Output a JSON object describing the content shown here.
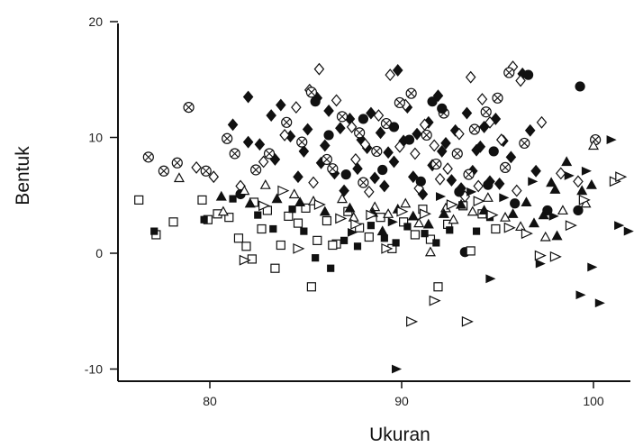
{
  "chart_data": {
    "type": "scatter",
    "title": "",
    "xlabel": "Ukuran",
    "ylabel": "Bentuk",
    "xlim": [
      76,
      101.5
    ],
    "ylim": [
      -10,
      20
    ],
    "x_ticks": [
      80,
      90,
      100
    ],
    "y_ticks": [
      -10,
      0,
      10,
      20
    ],
    "grid": false,
    "legend": "none",
    "colors": {
      "ink": "#111111",
      "background": "#ffffff"
    },
    "marker_symbols": [
      "filled-diamond",
      "open-diamond",
      "circle-cross",
      "filled-circle",
      "open-square",
      "filled-square",
      "open-triangle",
      "filled-triangle",
      "open-right-triangle",
      "filled-right-triangle"
    ],
    "series": [
      {
        "marker": "filled-diamond",
        "points": [
          [
            82.0,
            13.5
          ],
          [
            81.2,
            11.1
          ],
          [
            82.0,
            9.6
          ],
          [
            83.2,
            11.9
          ],
          [
            83.7,
            12.8
          ],
          [
            84.2,
            10.1
          ],
          [
            85.6,
            13.4
          ],
          [
            86.2,
            12.3
          ],
          [
            86.8,
            10.8
          ],
          [
            87.3,
            11.6
          ],
          [
            87.9,
            9.8
          ],
          [
            88.4,
            12.1
          ],
          [
            88.9,
            10.4
          ],
          [
            89.3,
            8.7
          ],
          [
            89.8,
            15.8
          ],
          [
            90.3,
            12.6
          ],
          [
            90.8,
            10.3
          ],
          [
            91.4,
            11.3
          ],
          [
            91.9,
            13.6
          ],
          [
            92.3,
            9.5
          ],
          [
            92.8,
            10.6
          ],
          [
            93.4,
            12.1
          ],
          [
            93.9,
            8.9
          ],
          [
            94.3,
            10.9
          ],
          [
            94.9,
            11.6
          ],
          [
            95.3,
            9.7
          ],
          [
            96.3,
            15.5
          ],
          [
            96.7,
            10.6
          ],
          [
            84.9,
            8.8
          ],
          [
            85.8,
            7.8
          ],
          [
            86.5,
            6.9
          ],
          [
            87.7,
            7.3
          ],
          [
            88.6,
            6.5
          ],
          [
            89.6,
            7.9
          ],
          [
            90.6,
            6.6
          ],
          [
            91.6,
            7.6
          ],
          [
            92.6,
            6.3
          ],
          [
            93.7,
            7.1
          ],
          [
            94.6,
            6.2
          ],
          [
            86.0,
            9.3
          ],
          [
            88.2,
            9.1
          ],
          [
            90.1,
            9.7
          ],
          [
            92.1,
            8.8
          ],
          [
            94.1,
            9.2
          ],
          [
            95.7,
            8.3
          ],
          [
            83.4,
            8.1
          ],
          [
            84.6,
            6.6
          ],
          [
            87.0,
            5.4
          ],
          [
            89.1,
            5.8
          ],
          [
            91.1,
            5.1
          ],
          [
            93.1,
            5.6
          ],
          [
            95.1,
            6.0
          ],
          [
            97.0,
            7.1
          ],
          [
            82.6,
            9.4
          ],
          [
            85.1,
            10.7
          ]
        ]
      },
      {
        "marker": "open-diamond",
        "points": [
          [
            79.3,
            7.4
          ],
          [
            80.2,
            6.6
          ],
          [
            81.6,
            5.8
          ],
          [
            82.8,
            7.9
          ],
          [
            83.9,
            10.2
          ],
          [
            84.5,
            12.6
          ],
          [
            85.2,
            14.1
          ],
          [
            85.7,
            15.9
          ],
          [
            86.6,
            13.2
          ],
          [
            87.4,
            10.9
          ],
          [
            88.1,
            9.4
          ],
          [
            88.8,
            11.9
          ],
          [
            89.4,
            15.4
          ],
          [
            90.2,
            12.8
          ],
          [
            90.7,
            8.6
          ],
          [
            91.2,
            11.1
          ],
          [
            91.7,
            9.3
          ],
          [
            92.4,
            7.3
          ],
          [
            93.0,
            10.3
          ],
          [
            93.6,
            15.2
          ],
          [
            94.2,
            13.3
          ],
          [
            94.6,
            11.3
          ],
          [
            95.2,
            9.8
          ],
          [
            95.8,
            16.1
          ],
          [
            96.2,
            14.9
          ],
          [
            97.3,
            11.3
          ],
          [
            98.3,
            6.9
          ],
          [
            99.2,
            6.2
          ],
          [
            87.6,
            8.1
          ],
          [
            89.9,
            9.2
          ],
          [
            92.0,
            6.4
          ],
          [
            94.0,
            5.8
          ],
          [
            85.4,
            6.1
          ],
          [
            88.3,
            5.3
          ],
          [
            90.9,
            5.6
          ],
          [
            93.3,
            4.9
          ],
          [
            96.0,
            5.4
          ]
        ]
      },
      {
        "marker": "circle-cross",
        "points": [
          [
            76.8,
            8.3
          ],
          [
            77.6,
            7.1
          ],
          [
            78.3,
            7.8
          ],
          [
            78.9,
            12.6
          ],
          [
            79.8,
            7.1
          ],
          [
            80.9,
            9.9
          ],
          [
            81.3,
            8.6
          ],
          [
            82.4,
            7.2
          ],
          [
            83.1,
            8.6
          ],
          [
            84.0,
            11.3
          ],
          [
            84.8,
            9.6
          ],
          [
            85.3,
            13.9
          ],
          [
            86.1,
            8.1
          ],
          [
            86.9,
            11.8
          ],
          [
            87.8,
            10.4
          ],
          [
            88.7,
            8.8
          ],
          [
            89.2,
            11.2
          ],
          [
            89.9,
            13.0
          ],
          [
            90.5,
            13.8
          ],
          [
            91.3,
            10.2
          ],
          [
            92.2,
            12.1
          ],
          [
            92.9,
            8.6
          ],
          [
            93.8,
            10.7
          ],
          [
            94.4,
            12.2
          ],
          [
            95.0,
            13.4
          ],
          [
            95.6,
            15.6
          ],
          [
            96.4,
            9.5
          ],
          [
            100.1,
            9.8
          ],
          [
            86.4,
            7.3
          ],
          [
            88.0,
            6.1
          ],
          [
            91.8,
            7.7
          ],
          [
            93.5,
            6.8
          ],
          [
            95.4,
            7.4
          ]
        ]
      },
      {
        "marker": "filled-circle",
        "points": [
          [
            81.6,
            5.1
          ],
          [
            85.5,
            13.1
          ],
          [
            86.2,
            10.2
          ],
          [
            88.0,
            11.6
          ],
          [
            89.6,
            10.9
          ],
          [
            90.4,
            9.8
          ],
          [
            91.6,
            13.1
          ],
          [
            92.1,
            12.5
          ],
          [
            93.3,
            0.1
          ],
          [
            94.8,
            8.8
          ],
          [
            95.9,
            4.3
          ],
          [
            96.6,
            15.4
          ],
          [
            97.6,
            3.7
          ],
          [
            99.2,
            3.7
          ],
          [
            99.3,
            14.4
          ],
          [
            87.1,
            6.8
          ],
          [
            89.0,
            7.2
          ],
          [
            91.0,
            6.2
          ],
          [
            93.0,
            5.3
          ],
          [
            94.5,
            5.9
          ]
        ]
      },
      {
        "marker": "open-square",
        "points": [
          [
            76.3,
            4.6
          ],
          [
            77.2,
            1.6
          ],
          [
            78.1,
            2.7
          ],
          [
            79.6,
            4.6
          ],
          [
            79.9,
            2.9
          ],
          [
            80.4,
            3.4
          ],
          [
            81.0,
            3.1
          ],
          [
            81.5,
            1.3
          ],
          [
            81.9,
            0.6
          ],
          [
            82.3,
            4.4
          ],
          [
            82.7,
            2.1
          ],
          [
            83.0,
            3.7
          ],
          [
            83.4,
            -1.3
          ],
          [
            83.7,
            0.7
          ],
          [
            84.1,
            3.2
          ],
          [
            84.6,
            2.6
          ],
          [
            85.0,
            3.9
          ],
          [
            85.3,
            -2.9
          ],
          [
            85.6,
            1.1
          ],
          [
            86.1,
            2.8
          ],
          [
            86.6,
            0.8
          ],
          [
            87.2,
            3.6
          ],
          [
            87.8,
            2.2
          ],
          [
            88.3,
            1.4
          ],
          [
            88.9,
            3.1
          ],
          [
            89.5,
            0.4
          ],
          [
            90.1,
            2.7
          ],
          [
            90.7,
            1.6
          ],
          [
            91.1,
            3.8
          ],
          [
            91.5,
            1.2
          ],
          [
            91.9,
            -2.9
          ],
          [
            92.4,
            2.5
          ],
          [
            93.2,
            4.1
          ],
          [
            93.6,
            0.2
          ],
          [
            94.2,
            3.4
          ],
          [
            94.9,
            2.1
          ],
          [
            82.2,
            -0.5
          ],
          [
            86.4,
            0.7
          ]
        ]
      },
      {
        "marker": "filled-square",
        "points": [
          [
            77.1,
            1.9
          ],
          [
            79.7,
            2.9
          ],
          [
            81.2,
            4.7
          ],
          [
            82.5,
            3.3
          ],
          [
            83.3,
            2.1
          ],
          [
            84.3,
            3.8
          ],
          [
            84.9,
            1.9
          ],
          [
            85.5,
            -0.4
          ],
          [
            86.3,
            -1.3
          ],
          [
            87.0,
            1.1
          ],
          [
            87.7,
            0.6
          ],
          [
            88.4,
            2.4
          ],
          [
            89.1,
            1.3
          ],
          [
            89.7,
            0.9
          ],
          [
            90.3,
            2.3
          ],
          [
            91.2,
            1.7
          ],
          [
            91.8,
            0.9
          ],
          [
            92.5,
            2.0
          ],
          [
            93.9,
            1.9
          ],
          [
            94.6,
            3.1
          ]
        ]
      },
      {
        "marker": "open-triangle",
        "points": [
          [
            78.4,
            6.5
          ],
          [
            80.7,
            3.6
          ],
          [
            81.8,
            5.4
          ],
          [
            82.9,
            5.9
          ],
          [
            84.4,
            5.1
          ],
          [
            85.4,
            4.5
          ],
          [
            86.9,
            4.7
          ],
          [
            87.5,
            3.1
          ],
          [
            88.6,
            4.0
          ],
          [
            89.3,
            3.4
          ],
          [
            90.2,
            4.3
          ],
          [
            90.9,
            2.6
          ],
          [
            91.5,
            0.1
          ],
          [
            92.3,
            3.9
          ],
          [
            92.7,
            2.9
          ],
          [
            93.7,
            3.6
          ],
          [
            94.5,
            4.8
          ],
          [
            95.4,
            3.1
          ],
          [
            96.2,
            2.3
          ],
          [
            97.5,
            1.4
          ],
          [
            98.4,
            3.7
          ],
          [
            99.6,
            4.3
          ],
          [
            100.0,
            9.3
          ]
        ]
      },
      {
        "marker": "filled-triangle",
        "points": [
          [
            80.6,
            4.9
          ],
          [
            82.1,
            4.3
          ],
          [
            83.5,
            4.7
          ],
          [
            84.7,
            4.4
          ],
          [
            86.0,
            3.6
          ],
          [
            87.3,
            3.9
          ],
          [
            88.5,
            3.5
          ],
          [
            89.0,
            1.9
          ],
          [
            89.8,
            3.8
          ],
          [
            90.6,
            3.2
          ],
          [
            91.4,
            2.5
          ],
          [
            92.2,
            3.4
          ],
          [
            93.1,
            4.2
          ],
          [
            94.3,
            3.7
          ],
          [
            95.8,
            3.4
          ],
          [
            96.5,
            4.4
          ],
          [
            97.4,
            3.3
          ],
          [
            97.8,
            6.1
          ],
          [
            98.0,
            5.5
          ],
          [
            98.6,
            7.9
          ],
          [
            99.4,
            5.4
          ],
          [
            99.9,
            5.9
          ],
          [
            98.1,
            1.5
          ],
          [
            96.9,
            2.6
          ]
        ]
      },
      {
        "marker": "open-right-triangle",
        "points": [
          [
            81.8,
            -0.6
          ],
          [
            82.8,
            4.1
          ],
          [
            83.8,
            5.4
          ],
          [
            84.6,
            0.4
          ],
          [
            85.7,
            4.2
          ],
          [
            86.8,
            3.0
          ],
          [
            87.6,
            2.5
          ],
          [
            88.4,
            3.3
          ],
          [
            89.2,
            0.4
          ],
          [
            90.0,
            3.6
          ],
          [
            90.5,
            -5.9
          ],
          [
            91.2,
            3.4
          ],
          [
            91.7,
            -4.1
          ],
          [
            92.6,
            4.2
          ],
          [
            93.4,
            -5.9
          ],
          [
            94.0,
            4.5
          ],
          [
            94.7,
            3.3
          ],
          [
            95.6,
            2.2
          ],
          [
            96.5,
            1.7
          ],
          [
            97.2,
            -0.2
          ],
          [
            98.0,
            -0.3
          ],
          [
            98.8,
            2.4
          ],
          [
            99.5,
            4.6
          ],
          [
            101.1,
            6.2
          ],
          [
            101.4,
            6.6
          ]
        ]
      },
      {
        "marker": "filled-right-triangle",
        "points": [
          [
            89.7,
            -10.0
          ],
          [
            94.6,
            -2.2
          ],
          [
            97.2,
            -0.9
          ],
          [
            99.3,
            -3.6
          ],
          [
            99.9,
            -1.2
          ],
          [
            100.3,
            -4.3
          ],
          [
            100.9,
            9.8
          ],
          [
            101.3,
            2.4
          ],
          [
            101.8,
            1.9
          ],
          [
            96.8,
            6.2
          ],
          [
            97.9,
            3.2
          ],
          [
            98.7,
            6.7
          ],
          [
            99.6,
            7.1
          ],
          [
            95.3,
            4.8
          ],
          [
            93.6,
            5.3
          ],
          [
            92.0,
            4.9
          ],
          [
            89.5,
            2.7
          ],
          [
            87.4,
            1.8
          ]
        ]
      }
    ]
  }
}
